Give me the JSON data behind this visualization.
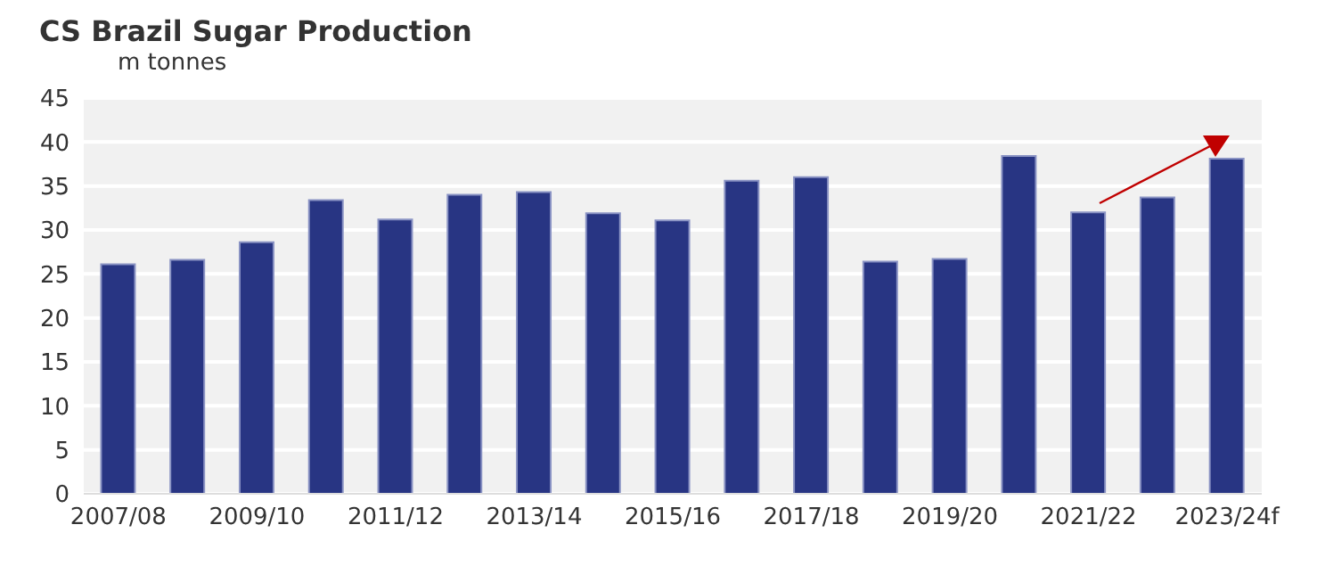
{
  "chart_data": {
    "type": "bar",
    "title": "CS Brazil Sugar Production",
    "subtitle": "m tonnes",
    "categories": [
      "2007/08",
      null,
      "2009/10",
      null,
      "2011/12",
      null,
      "2013/14",
      null,
      "2015/16",
      null,
      "2017/18",
      null,
      "2019/20",
      null,
      "2021/22",
      null,
      "2023/24f"
    ],
    "values": [
      26.1,
      26.6,
      28.6,
      33.4,
      31.2,
      34.0,
      34.3,
      31.9,
      31.1,
      35.6,
      36.0,
      26.4,
      26.7,
      38.4,
      32.0,
      33.7,
      38.1
    ],
    "color": "#283583",
    "ylim": [
      0,
      45
    ],
    "yticks": [
      0,
      5,
      10,
      15,
      20,
      25,
      30,
      35,
      40,
      45
    ],
    "grid": "y"
  }
}
